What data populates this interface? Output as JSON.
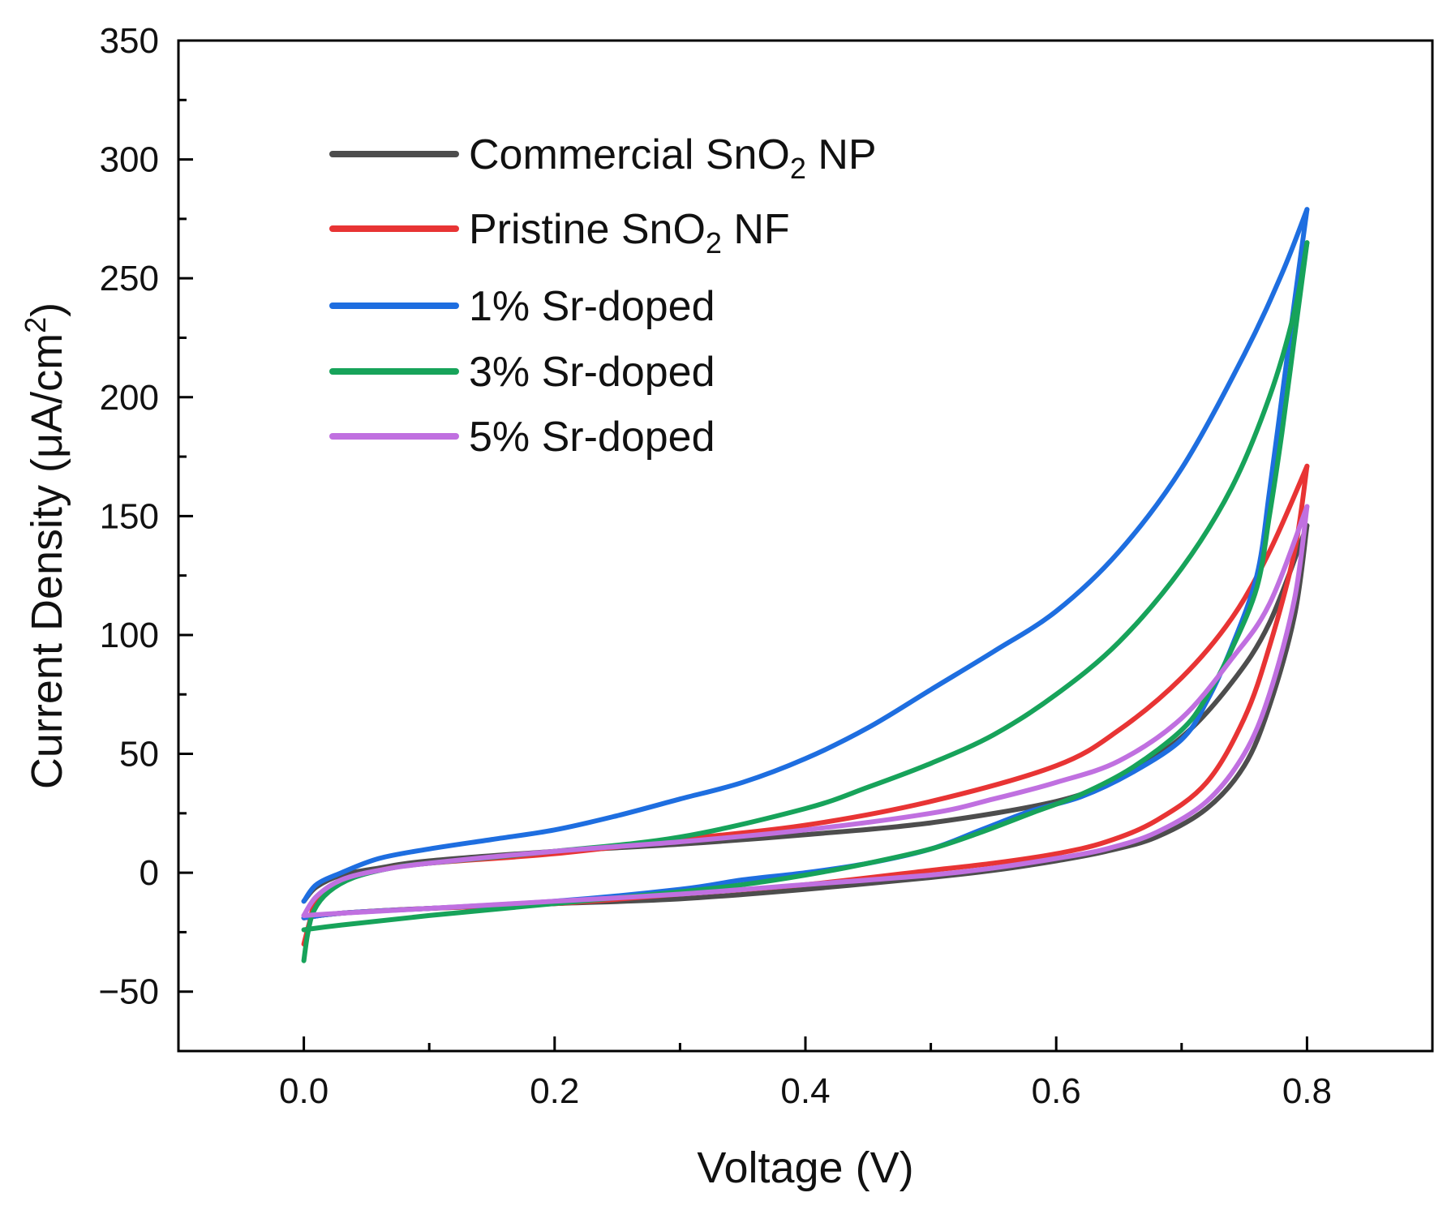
{
  "chart_data": {
    "type": "line",
    "title": "",
    "xlabel": "Voltage (V)",
    "ylabel": {
      "main": "Current Density (μA/cm",
      "sup": "2",
      "close": ")"
    },
    "xlim": [
      -0.1,
      0.9
    ],
    "ylim": [
      -75,
      350
    ],
    "x_ticks": [
      0.0,
      0.2,
      0.4,
      0.6,
      0.8
    ],
    "x_tick_labels": [
      "0.0",
      "0.2",
      "0.4",
      "0.6",
      "0.8"
    ],
    "y_ticks": [
      -50,
      0,
      50,
      100,
      150,
      200,
      250,
      300,
      350
    ],
    "y_tick_labels": [
      "−50",
      "0",
      "50",
      "100",
      "150",
      "200",
      "250",
      "300",
      "350"
    ],
    "grid": false,
    "legend_position": "top-left",
    "series": [
      {
        "name": {
          "pre": "Commercial SnO",
          "sub": "2",
          "post": " NP"
        },
        "color": "#4d4d4d",
        "forward": [
          [
            0.0,
            -12
          ],
          [
            0.01,
            -6
          ],
          [
            0.03,
            -1
          ],
          [
            0.06,
            2
          ],
          [
            0.1,
            5
          ],
          [
            0.2,
            9
          ],
          [
            0.3,
            12
          ],
          [
            0.4,
            16
          ],
          [
            0.5,
            21
          ],
          [
            0.6,
            30
          ],
          [
            0.65,
            40
          ],
          [
            0.7,
            57
          ],
          [
            0.74,
            80
          ],
          [
            0.77,
            105
          ],
          [
            0.8,
            146
          ]
        ],
        "reverse": [
          [
            0.8,
            146
          ],
          [
            0.79,
            108
          ],
          [
            0.77,
            70
          ],
          [
            0.75,
            45
          ],
          [
            0.72,
            27
          ],
          [
            0.68,
            15
          ],
          [
            0.64,
            9
          ],
          [
            0.6,
            5
          ],
          [
            0.55,
            1
          ],
          [
            0.5,
            -2
          ],
          [
            0.4,
            -7
          ],
          [
            0.3,
            -11
          ],
          [
            0.2,
            -13
          ],
          [
            0.1,
            -15
          ],
          [
            0.03,
            -17
          ],
          [
            0.0,
            -19
          ]
        ]
      },
      {
        "name": {
          "pre": "Pristine SnO",
          "sub": "2",
          "post": " NF"
        },
        "color": "#e83434",
        "forward": [
          [
            0.0,
            -30
          ],
          [
            0.005,
            -20
          ],
          [
            0.01,
            -12
          ],
          [
            0.03,
            -4
          ],
          [
            0.06,
            1
          ],
          [
            0.1,
            4
          ],
          [
            0.2,
            8
          ],
          [
            0.3,
            14
          ],
          [
            0.4,
            20
          ],
          [
            0.5,
            30
          ],
          [
            0.6,
            45
          ],
          [
            0.65,
            60
          ],
          [
            0.7,
            82
          ],
          [
            0.74,
            107
          ],
          [
            0.77,
            135
          ],
          [
            0.8,
            171
          ]
        ],
        "reverse": [
          [
            0.8,
            171
          ],
          [
            0.79,
            135
          ],
          [
            0.77,
            95
          ],
          [
            0.75,
            65
          ],
          [
            0.72,
            38
          ],
          [
            0.68,
            22
          ],
          [
            0.64,
            13
          ],
          [
            0.6,
            8
          ],
          [
            0.55,
            4
          ],
          [
            0.5,
            1
          ],
          [
            0.4,
            -5
          ],
          [
            0.3,
            -9
          ],
          [
            0.2,
            -13
          ],
          [
            0.1,
            -15
          ],
          [
            0.03,
            -17
          ],
          [
            0.0,
            -19
          ]
        ]
      },
      {
        "name": {
          "pre": "1% Sr-doped",
          "sub": "",
          "post": ""
        },
        "color": "#1e6ee0",
        "forward": [
          [
            0.0,
            -12
          ],
          [
            0.01,
            -5
          ],
          [
            0.03,
            0
          ],
          [
            0.06,
            6
          ],
          [
            0.1,
            10
          ],
          [
            0.15,
            14
          ],
          [
            0.2,
            18
          ],
          [
            0.25,
            24
          ],
          [
            0.3,
            31
          ],
          [
            0.35,
            38
          ],
          [
            0.4,
            48
          ],
          [
            0.45,
            61
          ],
          [
            0.5,
            77
          ],
          [
            0.55,
            93
          ],
          [
            0.6,
            110
          ],
          [
            0.65,
            135
          ],
          [
            0.7,
            170
          ],
          [
            0.75,
            218
          ],
          [
            0.78,
            252
          ],
          [
            0.8,
            279
          ]
        ],
        "reverse": [
          [
            0.8,
            279
          ],
          [
            0.79,
            240
          ],
          [
            0.78,
            200
          ],
          [
            0.77,
            160
          ],
          [
            0.76,
            125
          ],
          [
            0.74,
            95
          ],
          [
            0.72,
            72
          ],
          [
            0.7,
            56
          ],
          [
            0.66,
            42
          ],
          [
            0.62,
            32
          ],
          [
            0.58,
            26
          ],
          [
            0.54,
            18
          ],
          [
            0.5,
            10
          ],
          [
            0.45,
            4
          ],
          [
            0.4,
            0
          ],
          [
            0.35,
            -3
          ],
          [
            0.3,
            -7
          ],
          [
            0.2,
            -12
          ],
          [
            0.1,
            -15
          ],
          [
            0.03,
            -17
          ],
          [
            0.0,
            -19
          ]
        ]
      },
      {
        "name": {
          "pre": "3% Sr-doped",
          "sub": "",
          "post": ""
        },
        "color": "#17a35a",
        "forward": [
          [
            0.0,
            -37
          ],
          [
            0.003,
            -26
          ],
          [
            0.008,
            -16
          ],
          [
            0.02,
            -8
          ],
          [
            0.04,
            -2
          ],
          [
            0.07,
            2
          ],
          [
            0.1,
            4
          ],
          [
            0.2,
            9
          ],
          [
            0.3,
            15
          ],
          [
            0.4,
            27
          ],
          [
            0.45,
            36
          ],
          [
            0.5,
            46
          ],
          [
            0.55,
            58
          ],
          [
            0.6,
            75
          ],
          [
            0.65,
            97
          ],
          [
            0.7,
            128
          ],
          [
            0.74,
            162
          ],
          [
            0.77,
            200
          ],
          [
            0.79,
            236
          ],
          [
            0.8,
            265
          ]
        ],
        "reverse": [
          [
            0.8,
            265
          ],
          [
            0.79,
            225
          ],
          [
            0.78,
            185
          ],
          [
            0.77,
            150
          ],
          [
            0.76,
            120
          ],
          [
            0.74,
            94
          ],
          [
            0.72,
            74
          ],
          [
            0.7,
            60
          ],
          [
            0.66,
            44
          ],
          [
            0.62,
            33
          ],
          [
            0.58,
            25
          ],
          [
            0.54,
            17
          ],
          [
            0.5,
            10
          ],
          [
            0.45,
            4
          ],
          [
            0.4,
            -1
          ],
          [
            0.35,
            -5
          ],
          [
            0.3,
            -8
          ],
          [
            0.2,
            -13
          ],
          [
            0.1,
            -18
          ],
          [
            0.03,
            -22
          ],
          [
            0.0,
            -24
          ]
        ]
      },
      {
        "name": {
          "pre": "5% Sr-doped",
          "sub": "",
          "post": ""
        },
        "color": "#c070e0",
        "forward": [
          [
            0.0,
            -18
          ],
          [
            0.01,
            -10
          ],
          [
            0.03,
            -3
          ],
          [
            0.06,
            1
          ],
          [
            0.1,
            4
          ],
          [
            0.2,
            9
          ],
          [
            0.3,
            13
          ],
          [
            0.4,
            18
          ],
          [
            0.5,
            25
          ],
          [
            0.55,
            31
          ],
          [
            0.6,
            38
          ],
          [
            0.65,
            47
          ],
          [
            0.7,
            65
          ],
          [
            0.74,
            90
          ],
          [
            0.77,
            113
          ],
          [
            0.8,
            154
          ]
        ],
        "reverse": [
          [
            0.8,
            154
          ],
          [
            0.79,
            115
          ],
          [
            0.77,
            75
          ],
          [
            0.75,
            50
          ],
          [
            0.72,
            30
          ],
          [
            0.68,
            17
          ],
          [
            0.64,
            10
          ],
          [
            0.6,
            6
          ],
          [
            0.55,
            2
          ],
          [
            0.5,
            -1
          ],
          [
            0.4,
            -5
          ],
          [
            0.3,
            -9
          ],
          [
            0.2,
            -12
          ],
          [
            0.1,
            -15
          ],
          [
            0.03,
            -17
          ],
          [
            0.0,
            -18
          ]
        ]
      }
    ]
  }
}
